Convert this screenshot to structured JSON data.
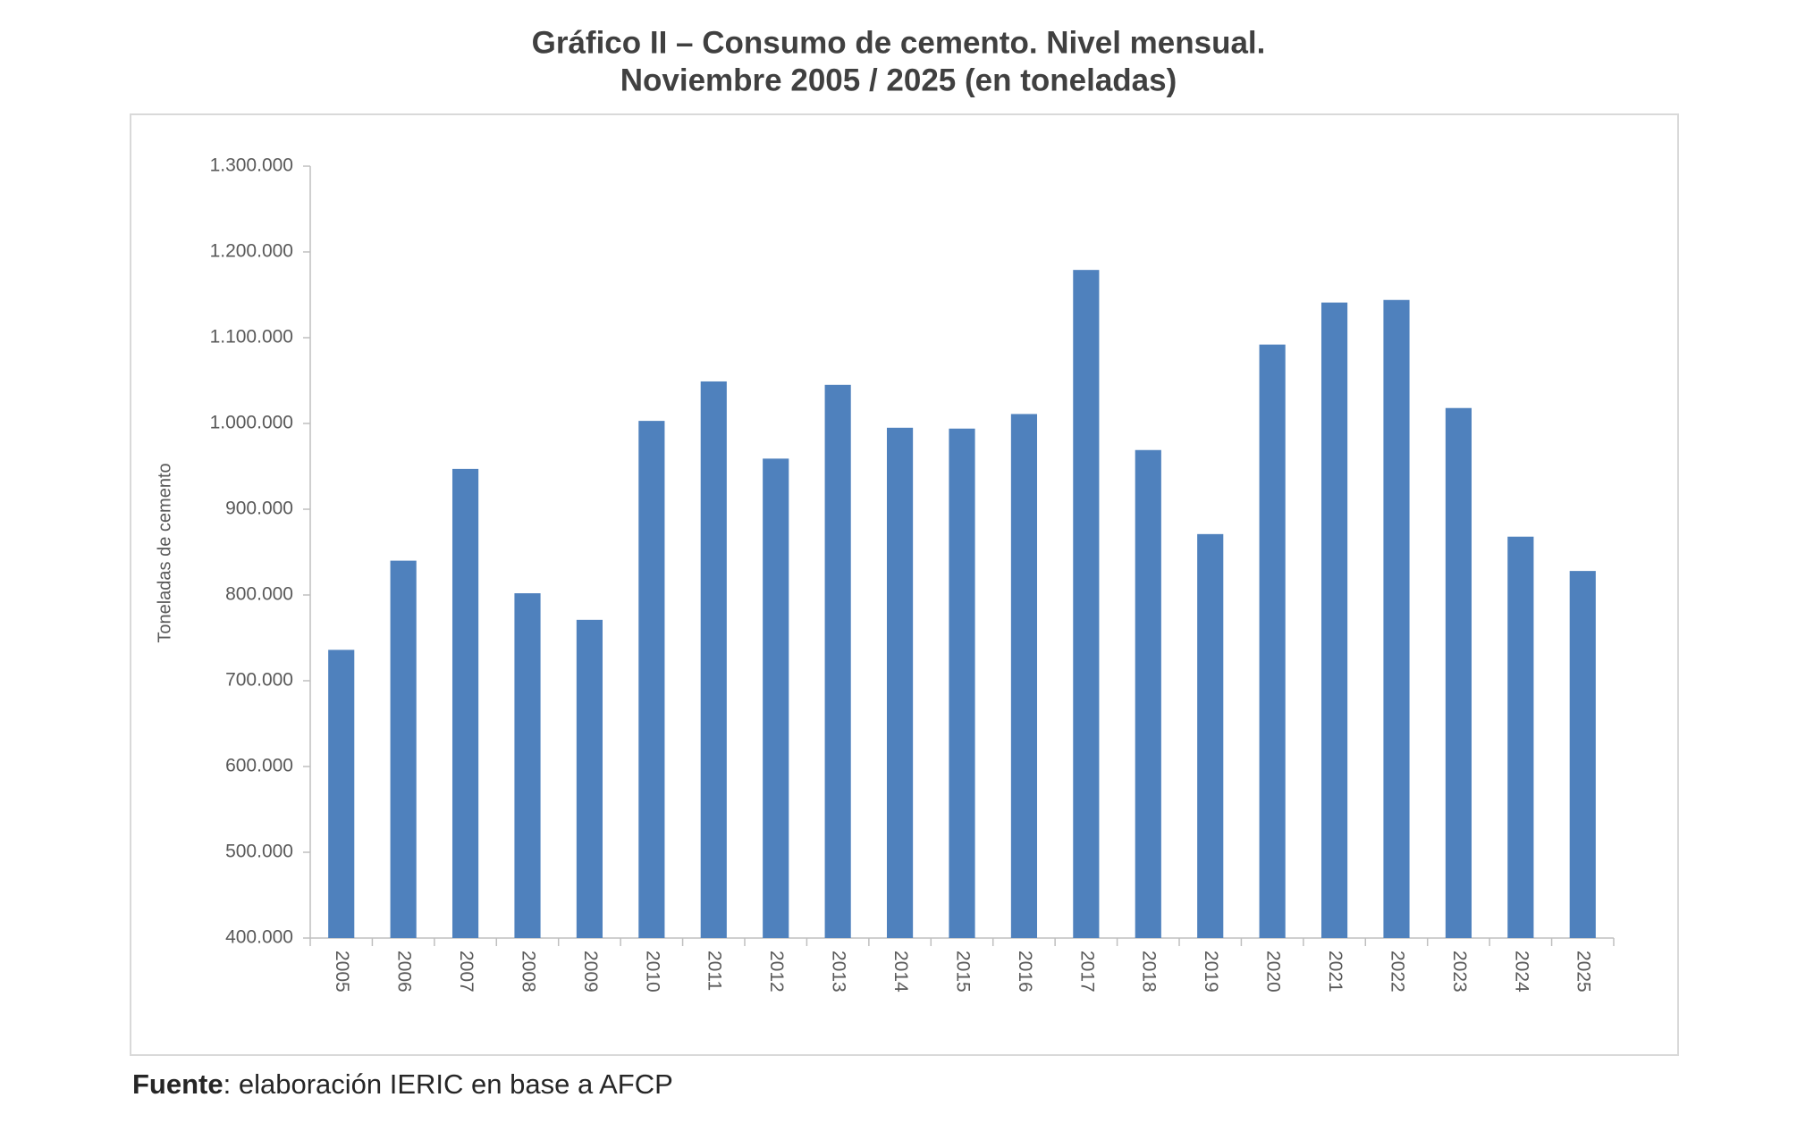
{
  "chart_data": {
    "type": "bar",
    "title": "Gráfico II – Consumo de cemento. Nivel mensual.",
    "subtitle": "Noviembre 2005 / 2025 (en toneladas)",
    "y_label": "Toneladas de cemento",
    "categories": [
      "2005",
      "2006",
      "2007",
      "2008",
      "2009",
      "2010",
      "2011",
      "2012",
      "2013",
      "2014",
      "2015",
      "2016",
      "2017",
      "2018",
      "2019",
      "2020",
      "2021",
      "2022",
      "2023",
      "2024",
      "2025"
    ],
    "values": [
      736000,
      840000,
      947000,
      802000,
      771000,
      1003000,
      1049000,
      959000,
      1045000,
      995000,
      994000,
      1011000,
      1179000,
      969000,
      871000,
      1092000,
      1141000,
      1144000,
      1018000,
      868000,
      828000
    ],
    "color": "#4f81bd",
    "ylim": [
      400000,
      1300000
    ],
    "yticks": [
      {
        "value": 400000,
        "label": "400.000"
      },
      {
        "value": 500000,
        "label": "500.000"
      },
      {
        "value": 600000,
        "label": "600.000"
      },
      {
        "value": 700000,
        "label": "700.000"
      },
      {
        "value": 800000,
        "label": "800.000"
      },
      {
        "value": 900000,
        "label": "900.000"
      },
      {
        "value": 1000000,
        "label": "1.000.000"
      },
      {
        "value": 1100000,
        "label": "1.100.000"
      },
      {
        "value": 1200000,
        "label": "1.200.000"
      },
      {
        "value": 1300000,
        "label": "1.300.000"
      }
    ],
    "grid": false,
    "source": {
      "label": "Fuente",
      "text": ": elaboración IERIC en base a AFCP"
    }
  }
}
